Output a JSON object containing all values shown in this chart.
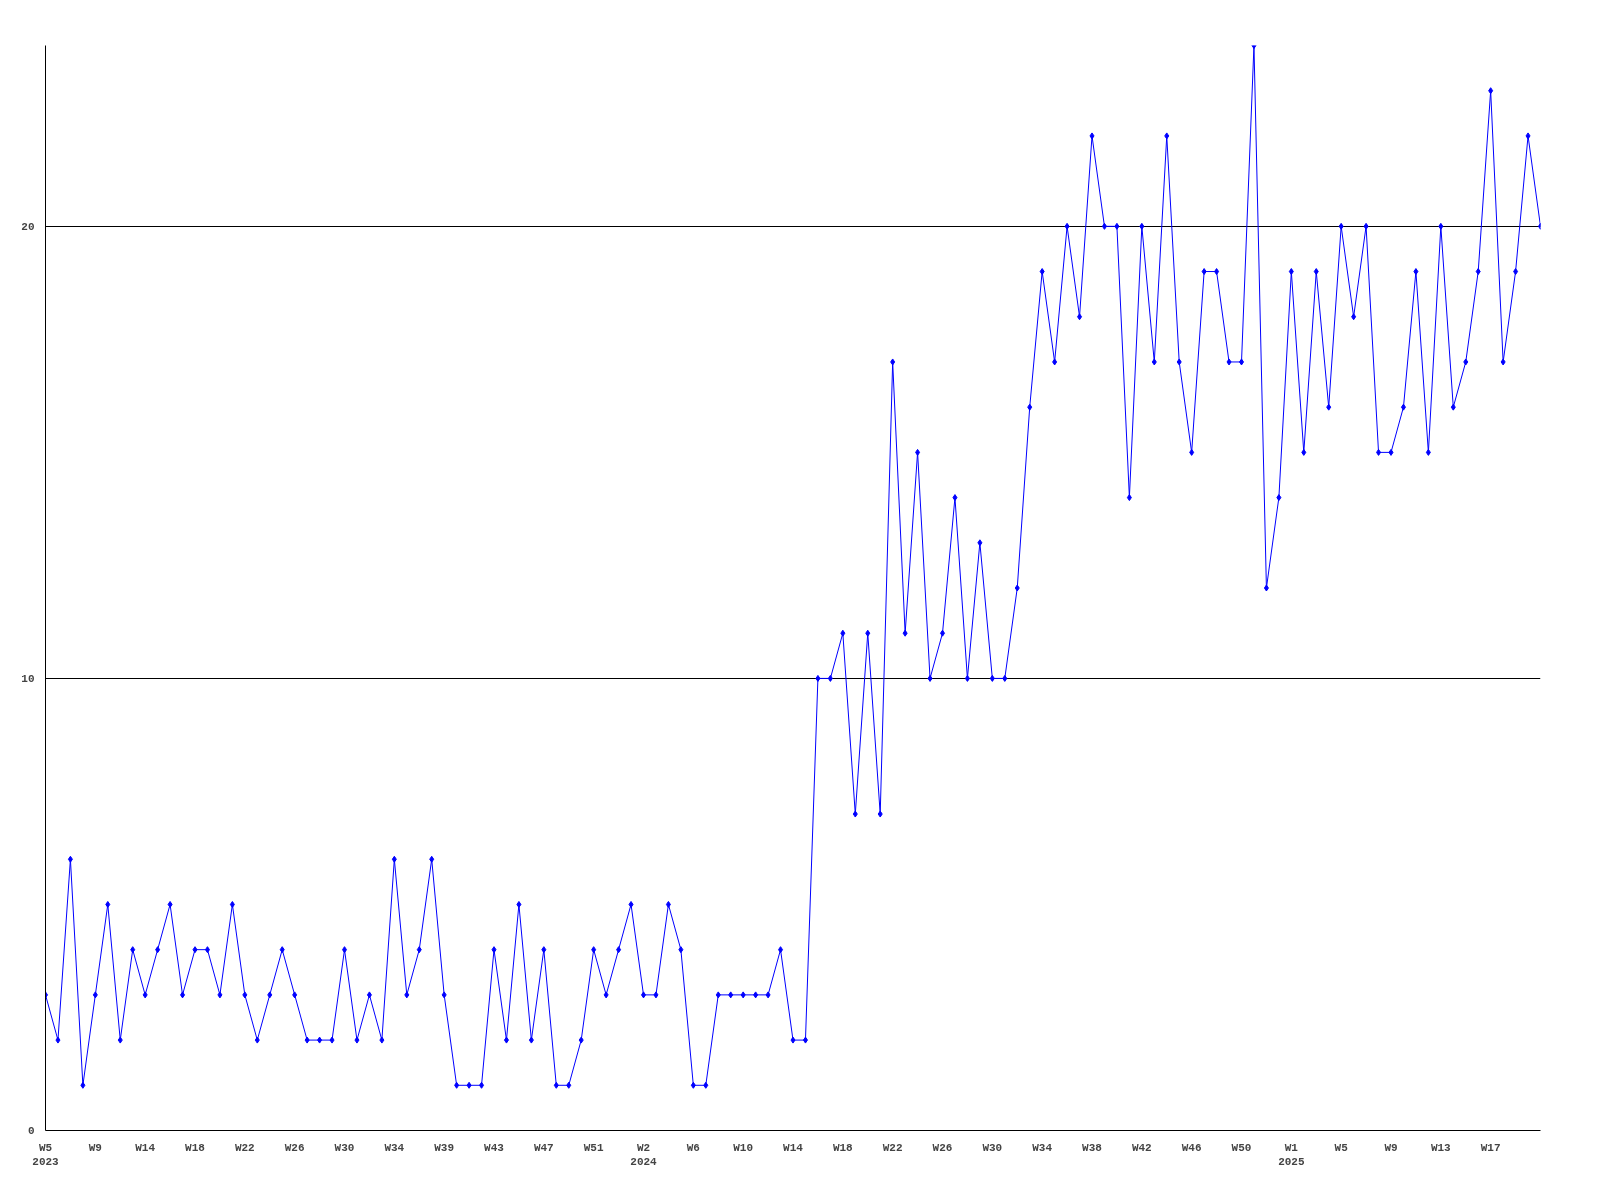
{
  "chart_data": {
    "type": "line",
    "categories": [
      "W5\n2023",
      null,
      null,
      null,
      "W9",
      null,
      null,
      null,
      "W14",
      null,
      null,
      null,
      "W18",
      null,
      null,
      null,
      "W22",
      null,
      null,
      null,
      "W26",
      null,
      null,
      null,
      "W30",
      null,
      null,
      null,
      "W34",
      null,
      null,
      null,
      "W39",
      null,
      null,
      null,
      "W43",
      null,
      null,
      null,
      "W47",
      null,
      null,
      null,
      "W51",
      null,
      null,
      null,
      "W2\n2024",
      null,
      null,
      null,
      "W6",
      null,
      null,
      null,
      "W10",
      null,
      null,
      null,
      "W14",
      null,
      null,
      null,
      "W18",
      null,
      null,
      null,
      "W22",
      null,
      null,
      null,
      "W26",
      null,
      null,
      null,
      "W30",
      null,
      null,
      null,
      "W34",
      null,
      null,
      null,
      "W38",
      null,
      null,
      null,
      "W42",
      null,
      null,
      null,
      "W46",
      null,
      null,
      null,
      "W50",
      null,
      null,
      null,
      "W1\n2025",
      null,
      null,
      null,
      "W5",
      null,
      null,
      null,
      "W9",
      null,
      null,
      null,
      "W13",
      null,
      null,
      null,
      "W17",
      null,
      null,
      null,
      null
    ],
    "series": [
      {
        "color": "#0000ff",
        "values": [
          3,
          2,
          6,
          1,
          3,
          5,
          2,
          4,
          3,
          4,
          5,
          3,
          4,
          4,
          3,
          5,
          3,
          2,
          3,
          4,
          3,
          2,
          2,
          2,
          4,
          2,
          3,
          2,
          6,
          3,
          4,
          6,
          3,
          1,
          1,
          1,
          4,
          2,
          5,
          2,
          4,
          1,
          1,
          2,
          4,
          3,
          4,
          5,
          3,
          3,
          5,
          4,
          1,
          1,
          3,
          3,
          3,
          3,
          3,
          4,
          2,
          2,
          10,
          10,
          11,
          7,
          11,
          7,
          17,
          11,
          15,
          10,
          11,
          14,
          10,
          13,
          10,
          10,
          12,
          16,
          19,
          17,
          20,
          18,
          22,
          20,
          20,
          14,
          20,
          17,
          22,
          17,
          15,
          19,
          19,
          17,
          17,
          24,
          12,
          14,
          19,
          15,
          19,
          16,
          20,
          18,
          20,
          15,
          15,
          16,
          19,
          15,
          20,
          16,
          17,
          19,
          23,
          17,
          19,
          22,
          20
        ]
      }
    ],
    "ylim": [
      0,
      24
    ],
    "yticks": [
      0,
      10,
      20
    ],
    "grid": "y",
    "marker": "diamond",
    "line_style": "solid"
  }
}
